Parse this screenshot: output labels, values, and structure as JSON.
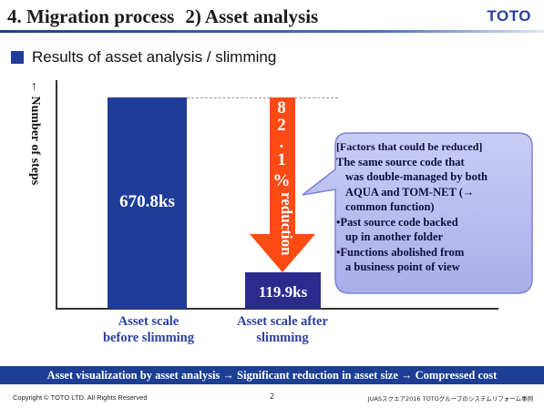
{
  "header": {
    "title_part1": "4. Migration process",
    "title_part2": "2) Asset analysis",
    "logo": "TOTO"
  },
  "section": {
    "heading": "Results of asset analysis / slimming"
  },
  "chart_data": {
    "type": "bar",
    "title": "",
    "ylabel": "← Number of steps",
    "categories": [
      "Asset scale before slimming",
      "Asset scale after slimming"
    ],
    "values": [
      670.8,
      119.9
    ],
    "value_labels": [
      "670.8ks",
      "119.9ks"
    ],
    "unit": "ks",
    "reduction_label": {
      "number_digits": [
        "8",
        "2",
        "."
      ],
      "number_decimal": "1",
      "percent": "%",
      "word": "reduction"
    },
    "colors": {
      "bar_before": "#1f3c98",
      "bar_after": "#2b2b8c",
      "arrow": "#ff4a14"
    }
  },
  "labels": {
    "x_before": [
      "Asset scale",
      "before slimming"
    ],
    "x_after": [
      "Asset scale after",
      "slimming"
    ]
  },
  "callout": {
    "heading": "[Factors that could be reduced]",
    "lines": [
      "The same source code that",
      "was double-managed by both",
      "AQUA and TOM-NET (→",
      "common function)",
      "•Past source code backed",
      "up in another folder",
      "•Functions abolished from",
      "a business point of view"
    ]
  },
  "summary": "Asset visualization by asset analysis → Significant reduction in asset size → Compressed cost",
  "footer": {
    "copyright": "Copyright © TOTO LTD. All Rights Reserved",
    "page": "2",
    "right": "JUASスクエア2016 TOTOグループのシステムリフォーム事例"
  }
}
